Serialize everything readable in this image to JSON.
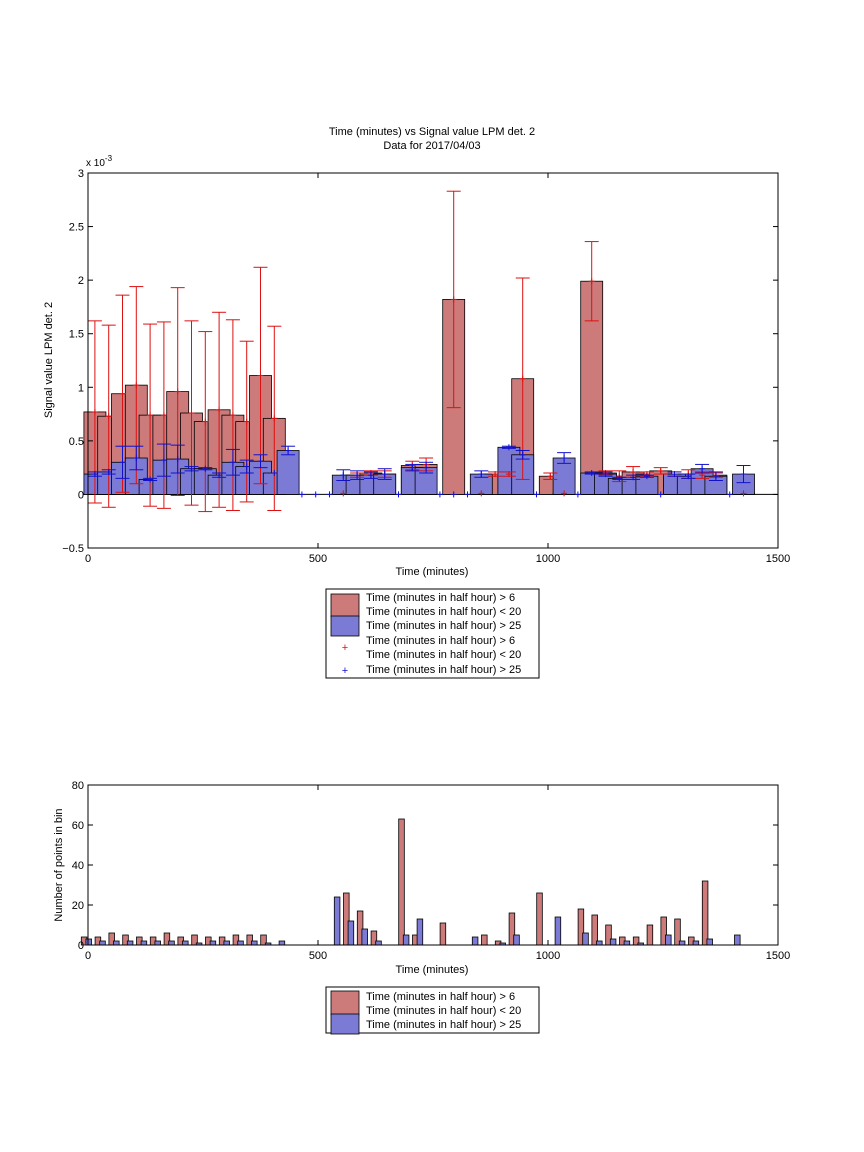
{
  "colors": {
    "red_bar": "#cc7a7a",
    "blue_bar": "#7b7bd6",
    "red_err": "#dd1111",
    "blue_err": "#1111cc",
    "axis": "#000000"
  },
  "chart_data": [
    {
      "type": "bar",
      "title": "Time (minutes) vs Signal value LPM det. 2",
      "subtitle": "Data for 2017/04/03",
      "xlabel": "Time (minutes)",
      "ylabel": "Signal value LPM det. 2",
      "exponent_label": "x 10",
      "exponent_power": "-3",
      "xlim": [
        0,
        1500
      ],
      "ylim": [
        -0.5,
        3
      ],
      "xticks": [
        "0",
        "500",
        "1000",
        "1500"
      ],
      "yticks": [
        "−0.5",
        "0",
        "0.5",
        "1",
        "1.5",
        "2",
        "2.5",
        "3"
      ],
      "ytick_values": [
        -0.5,
        0,
        0.5,
        1,
        1.5,
        2,
        2.5,
        3
      ],
      "y_scale_note": "values in units of 1e-3",
      "grid": false,
      "legend_position": "below",
      "legend": [
        {
          "kind": "patch",
          "color": "red",
          "text": "Time (minutes in half hour) > 6"
        },
        {
          "kind": "text",
          "text": "Time (minutes in half hour) < 20"
        },
        {
          "kind": "patch",
          "color": "blue",
          "text": "Time (minutes in half hour) > 25"
        },
        {
          "kind": "text",
          "text": "Time (minutes in half hour) > 6"
        },
        {
          "kind": "marker",
          "color": "red",
          "text": "Time (minutes in half hour) < 20"
        },
        {
          "kind": "marker",
          "color": "blue",
          "text": "Time (minutes in half hour) > 25"
        }
      ],
      "bar_width": 22,
      "series": [
        {
          "name": "red",
          "points": [
            [
              15,
              0.77,
              0.85
            ],
            [
              45,
              0.73,
              0.85
            ],
            [
              75,
              0.94,
              0.92
            ],
            [
              105,
              1.02,
              0.92
            ],
            [
              135,
              0.74,
              0.85
            ],
            [
              165,
              0.74,
              0.87
            ],
            [
              195,
              0.96,
              0.97
            ],
            [
              225,
              0.76,
              0.86
            ],
            [
              255,
              0.68,
              0.84
            ],
            [
              285,
              0.79,
              0.91
            ],
            [
              315,
              0.74,
              0.89
            ],
            [
              345,
              0.68,
              0.75
            ],
            [
              375,
              1.11,
              1.01
            ],
            [
              405,
              0.71,
              0.86
            ],
            [
              555,
              0.01,
              0.0
            ],
            [
              585,
              0.18,
              0.02
            ],
            [
              615,
              0.2,
              0.02
            ],
            [
              645,
              0.19,
              0.03
            ],
            [
              705,
              0.27,
              0.04
            ],
            [
              735,
              0.28,
              0.06
            ],
            [
              795,
              1.82,
              1.01
            ],
            [
              855,
              0.01,
              0.0
            ],
            [
              885,
              0.19,
              0.02
            ],
            [
              915,
              0.19,
              0.02
            ],
            [
              945,
              1.08,
              0.94
            ],
            [
              1005,
              0.17,
              0.03
            ],
            [
              1035,
              0.01,
              0.0
            ],
            [
              1095,
              1.99,
              0.37
            ],
            [
              1125,
              0.2,
              0.02
            ],
            [
              1155,
              0.17,
              0.05
            ],
            [
              1185,
              0.21,
              0.05
            ],
            [
              1215,
              0.19,
              0.02
            ],
            [
              1245,
              0.22,
              0.03
            ],
            [
              1275,
              0.19,
              0.02
            ],
            [
              1305,
              0.19,
              0.04
            ],
            [
              1335,
              0.18,
              0.03
            ],
            [
              1365,
              0.18,
              0.02
            ],
            [
              1425,
              0.01,
              0.0
            ]
          ]
        },
        {
          "name": "blue",
          "points": [
            [
              15,
              0.19,
              0.02
            ],
            [
              45,
              0.21,
              0.02
            ],
            [
              75,
              0.3,
              0.15
            ],
            [
              105,
              0.34,
              0.11
            ],
            [
              135,
              0.14,
              0.01
            ],
            [
              165,
              0.32,
              0.15
            ],
            [
              195,
              0.33,
              0.13
            ],
            [
              225,
              0.24,
              0.02
            ],
            [
              255,
              0.24,
              0.01
            ],
            [
              285,
              0.18,
              0.02
            ],
            [
              315,
              0.3,
              0.12
            ],
            [
              345,
              0.26,
              0.06
            ],
            [
              375,
              0.31,
              0.06
            ],
            [
              405,
              0.2,
              0.0
            ],
            [
              435,
              0.41,
              0.04
            ],
            [
              465,
              0.0,
              0.0
            ],
            [
              495,
              0.0,
              0.0
            ],
            [
              525,
              0.0,
              0.0
            ],
            [
              555,
              0.18,
              0.05
            ],
            [
              585,
              0.18,
              0.04
            ],
            [
              615,
              0.18,
              0.03
            ],
            [
              645,
              0.19,
              0.05
            ],
            [
              675,
              0.0,
              0.0
            ],
            [
              705,
              0.25,
              0.03
            ],
            [
              735,
              0.25,
              0.05
            ],
            [
              765,
              0.0,
              0.0
            ],
            [
              795,
              0.0,
              0.0
            ],
            [
              825,
              0.0,
              0.0
            ],
            [
              855,
              0.19,
              0.03
            ],
            [
              915,
              0.44,
              0.01
            ],
            [
              945,
              0.37,
              0.04
            ],
            [
              975,
              0.0,
              0.0
            ],
            [
              1035,
              0.34,
              0.05
            ],
            [
              1065,
              0.0,
              0.0
            ],
            [
              1095,
              0.2,
              0.01
            ],
            [
              1125,
              0.19,
              0.02
            ],
            [
              1155,
              0.15,
              0.01
            ],
            [
              1185,
              0.16,
              0.02
            ],
            [
              1215,
              0.17,
              0.01
            ],
            [
              1245,
              0.0,
              0.0
            ],
            [
              1275,
              0.19,
              0.02
            ],
            [
              1305,
              0.17,
              0.02
            ],
            [
              1335,
              0.24,
              0.04
            ],
            [
              1365,
              0.17,
              0.04
            ],
            [
              1395,
              0.0,
              0.0
            ],
            [
              1425,
              0.19,
              0.08
            ]
          ]
        }
      ]
    },
    {
      "type": "bar",
      "xlabel": "Time (minutes)",
      "ylabel": "Number of points in bin",
      "xlim": [
        0,
        1500
      ],
      "ylim": [
        0,
        80
      ],
      "xticks": [
        "0",
        "500",
        "1000",
        "1500"
      ],
      "yticks": [
        "0",
        "20",
        "40",
        "60",
        "80"
      ],
      "ytick_values": [
        0,
        20,
        40,
        60,
        80
      ],
      "grid": false,
      "legend_position": "below",
      "legend": [
        {
          "kind": "patch",
          "color": "red",
          "text": "Time (minutes in half hour) > 6"
        },
        {
          "kind": "text",
          "text": "Time (minutes in half hour) < 20"
        },
        {
          "kind": "patch",
          "color": "blue",
          "text": "Time (minutes in half hour) > 25"
        }
      ],
      "bar_width": 9,
      "series": [
        {
          "name": "red",
          "points": [
            [
              5,
              4
            ],
            [
              35,
              4
            ],
            [
              65,
              6
            ],
            [
              95,
              5
            ],
            [
              125,
              4
            ],
            [
              155,
              4
            ],
            [
              185,
              6
            ],
            [
              215,
              4
            ],
            [
              245,
              5
            ],
            [
              275,
              4
            ],
            [
              305,
              4
            ],
            [
              335,
              5
            ],
            [
              365,
              5
            ],
            [
              395,
              5
            ],
            [
              575,
              26
            ],
            [
              605,
              17
            ],
            [
              635,
              7
            ],
            [
              695,
              63
            ],
            [
              725,
              5
            ],
            [
              785,
              11
            ],
            [
              875,
              5
            ],
            [
              905,
              2
            ],
            [
              935,
              16
            ],
            [
              995,
              26
            ],
            [
              1085,
              18
            ],
            [
              1115,
              15
            ],
            [
              1145,
              10
            ],
            [
              1175,
              4
            ],
            [
              1205,
              4
            ],
            [
              1235,
              10
            ],
            [
              1265,
              14
            ],
            [
              1295,
              13
            ],
            [
              1325,
              4
            ],
            [
              1355,
              32
            ]
          ]
        },
        {
          "name": "blue",
          "points": [
            [
              15,
              3
            ],
            [
              45,
              2
            ],
            [
              75,
              2
            ],
            [
              105,
              2
            ],
            [
              135,
              2
            ],
            [
              165,
              2
            ],
            [
              195,
              2
            ],
            [
              225,
              2
            ],
            [
              255,
              1
            ],
            [
              285,
              2
            ],
            [
              315,
              2
            ],
            [
              345,
              2
            ],
            [
              375,
              2
            ],
            [
              405,
              1
            ],
            [
              435,
              2
            ],
            [
              555,
              24
            ],
            [
              585,
              12
            ],
            [
              615,
              8
            ],
            [
              645,
              2
            ],
            [
              705,
              5
            ],
            [
              735,
              13
            ],
            [
              855,
              4
            ],
            [
              915,
              1
            ],
            [
              945,
              5
            ],
            [
              1035,
              14
            ],
            [
              1095,
              6
            ],
            [
              1125,
              2
            ],
            [
              1155,
              3
            ],
            [
              1185,
              2
            ],
            [
              1215,
              1
            ],
            [
              1275,
              5
            ],
            [
              1305,
              2
            ],
            [
              1335,
              2
            ],
            [
              1365,
              3
            ],
            [
              1425,
              5
            ]
          ]
        }
      ]
    }
  ]
}
